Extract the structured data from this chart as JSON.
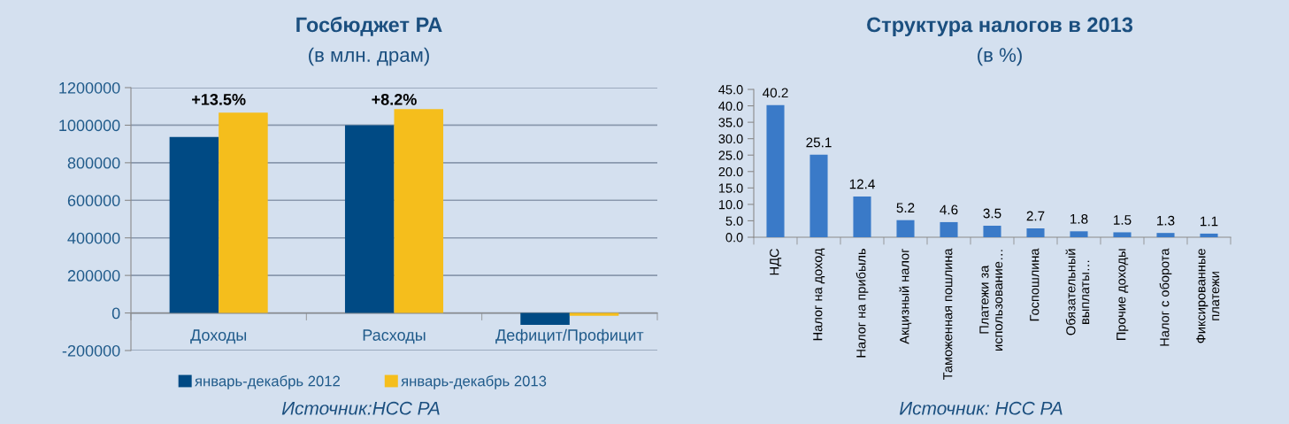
{
  "chart_data": [
    {
      "type": "bar",
      "title": "Госбюджет РА",
      "subtitle": "(в млн. драм)",
      "categories": [
        "Доходы",
        "Расходы",
        "Дефицит/Профицит"
      ],
      "series": [
        {
          "name": "январь-декабрь 2012",
          "color": "#004a84",
          "values": [
            937000,
            1000000,
            -63000
          ]
        },
        {
          "name": "январь-декабрь 2013",
          "color": "#f5be1c",
          "values": [
            1067000,
            1086000,
            -15000
          ]
        }
      ],
      "ylim": [
        -200000,
        1200000
      ],
      "yticks": [
        -200000,
        0,
        200000,
        400000,
        600000,
        800000,
        1000000,
        1200000
      ],
      "grid": "y",
      "legend": "bottom",
      "annotations": [
        {
          "text": "+13.5%",
          "x": "Доходы",
          "y": 1090000
        },
        {
          "text": "+8.2%",
          "x": "Расходы",
          "y": 1090000
        },
        "Источник:НСС РА"
      ]
    },
    {
      "type": "bar",
      "title": "Структура налогов в 2013",
      "subtitle": "(в %)",
      "categories": [
        "НДС",
        "Налог на доход",
        "Налог на прибыль",
        "Акцизный налог",
        "Таможенная пошлина",
        "Платежи за\nиспользование…",
        "Госпошлина",
        "Обязательный\nвыплаты…",
        "Прочие доходы",
        "Налог с оборота",
        "Фиксированные\nплатежи"
      ],
      "values": [
        40.2,
        25.1,
        12.4,
        5.2,
        4.6,
        3.5,
        2.7,
        1.8,
        1.5,
        1.3,
        1.1
      ],
      "color": "#3a7ac8",
      "ylim": [
        0,
        45
      ],
      "yticks": [
        {
          "value": 0,
          "label": "0.0"
        },
        {
          "value": 5,
          "label": "5.0"
        },
        {
          "value": 10,
          "label": "10.0"
        },
        {
          "value": 15,
          "label": "15.0"
        },
        {
          "value": 20,
          "label": "20.0"
        },
        {
          "value": 25,
          "label": "25.0"
        },
        {
          "value": 30,
          "label": "30.0"
        },
        {
          "value": 35,
          "label": "35.0"
        },
        {
          "value": 40,
          "label": "40.0"
        },
        {
          "value": 45,
          "label": "45.0"
        }
      ],
      "data_labels": true,
      "annotations": [
        "Источник: НСС РА"
      ]
    }
  ]
}
